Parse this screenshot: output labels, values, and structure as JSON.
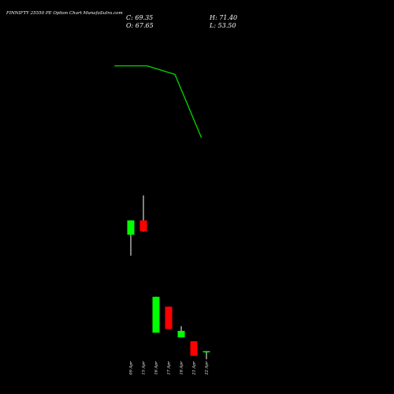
{
  "header": {
    "title": "FINNIFTY 25550  PE Option  Chart MunafaSutra.com",
    "close_label": "C: 69.35",
    "open_label": "O: 67.65",
    "high_label": "H: 71.40",
    "low_label": "L: 53.50"
  },
  "colors": {
    "background": "#000000",
    "up": "#00ff00",
    "down": "#ff0000",
    "wick": "#ffffff",
    "ma_line": "#00cc00",
    "text": "#ffffff"
  },
  "chart_data": {
    "type": "candlestick",
    "title": "FINNIFTY 25550  PE Option  Chart MunafaSutra.com",
    "categories": [
      "09 Apr",
      "15 Apr",
      "16 Apr",
      "17 Apr",
      "18 Apr",
      "21 Apr",
      "22 Apr"
    ],
    "candles": [
      {
        "date": "09 Apr",
        "open": 44.3,
        "high": 49.8,
        "low": 36.2,
        "close": 49.8
      },
      {
        "date": "15 Apr",
        "open": 49.8,
        "high": 59.4,
        "low": 45.5,
        "close": 45.6
      },
      {
        "date": "16 Apr",
        "open": 6.6,
        "high": 20.4,
        "low": 6.6,
        "close": 20.4
      },
      {
        "date": "17 Apr",
        "open": 16.6,
        "high": 16.6,
        "low": 8.0,
        "close": 8.0
      },
      {
        "date": "18 Apr",
        "open": 4.8,
        "high": 9.1,
        "low": 4.8,
        "close": 7.3
      },
      {
        "date": "21 Apr",
        "open": 3.3,
        "high": 3.3,
        "low": -2.3,
        "close": -2.3
      },
      {
        "date": "22 Apr",
        "open": -0.7,
        "high": -0.4,
        "low": -3.6,
        "close": -0.5
      }
    ],
    "ma_series": {
      "x": [
        -1.3,
        1.3,
        3.5,
        5.6
      ],
      "values": [
        109.2,
        109.2,
        105.9,
        81.6
      ]
    },
    "ylim": [
      -10,
      150
    ],
    "xlabel": "",
    "ylabel": "",
    "grid": false
  }
}
